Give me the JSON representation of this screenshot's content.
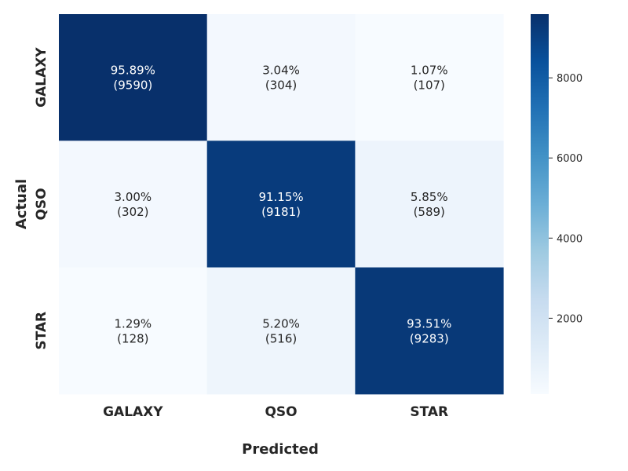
{
  "chart_data": {
    "type": "heatmap",
    "title": "",
    "xlabel": "Predicted",
    "ylabel": "Actual",
    "x_categories": [
      "GALAXY",
      "QSO",
      "STAR"
    ],
    "y_categories": [
      "GALAXY",
      "QSO",
      "STAR"
    ],
    "values": [
      [
        9590,
        304,
        107
      ],
      [
        302,
        9181,
        589
      ],
      [
        128,
        516,
        9283
      ]
    ],
    "cell_labels": [
      [
        {
          "pct": "95.89%",
          "count": "(9590)"
        },
        {
          "pct": "3.04%",
          "count": "(304)"
        },
        {
          "pct": "1.07%",
          "count": "(107)"
        }
      ],
      [
        {
          "pct": "3.00%",
          "count": "(302)"
        },
        {
          "pct": "91.15%",
          "count": "(9181)"
        },
        {
          "pct": "5.85%",
          "count": "(589)"
        }
      ],
      [
        {
          "pct": "1.29%",
          "count": "(128)"
        },
        {
          "pct": "5.20%",
          "count": "(516)"
        },
        {
          "pct": "93.51%",
          "count": "(9283)"
        }
      ]
    ],
    "colorbar": {
      "min": 107,
      "max": 9590,
      "ticks": [
        2000,
        4000,
        6000,
        8000
      ],
      "tick_labels": [
        "2000",
        "4000",
        "6000",
        "8000"
      ],
      "colormap": "Blues",
      "colors": [
        "#f7fbff",
        "#deebf7",
        "#c6dbef",
        "#9ecae1",
        "#6baed6",
        "#4292c6",
        "#2171b5",
        "#08519c",
        "#08306b"
      ]
    }
  }
}
